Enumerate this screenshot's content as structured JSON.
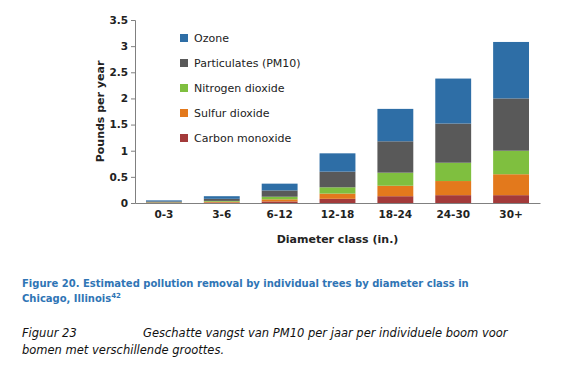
{
  "chart_data": {
    "type": "bar",
    "stacked": true,
    "legend": "top-left",
    "grid": false,
    "y_label": "Pounds per year",
    "x_label": "Diameter class (in.)",
    "categories": [
      "0-3",
      "3-6",
      "6-12",
      "12-18",
      "18-24",
      "24-30",
      "30+"
    ],
    "ylim": [
      0,
      3.5
    ],
    "yticks": [
      0,
      0.5,
      1,
      1.5,
      2,
      2.5,
      3,
      3.5
    ],
    "series": [
      {
        "name": "Carbon monoxide",
        "color": "#a33a3a",
        "values": [
          0.005,
          0.01,
          0.03,
          0.08,
          0.13,
          0.15,
          0.15
        ]
      },
      {
        "name": "Sulfur dioxide",
        "color": "#e3791c",
        "values": [
          0.005,
          0.015,
          0.04,
          0.1,
          0.2,
          0.27,
          0.4
        ]
      },
      {
        "name": "Nitrogen dioxide",
        "color": "#7fbf3f",
        "values": [
          0.005,
          0.015,
          0.05,
          0.12,
          0.25,
          0.35,
          0.45
        ]
      },
      {
        "name": "Particulates (PM10)",
        "color": "#595959",
        "values": [
          0.015,
          0.04,
          0.12,
          0.3,
          0.6,
          0.75,
          1.0
        ]
      },
      {
        "name": "Ozone",
        "color": "#2e6ea6",
        "values": [
          0.02,
          0.05,
          0.13,
          0.35,
          0.62,
          0.86,
          1.08
        ]
      }
    ],
    "title": [
      "Figure 20. Estimated pollution removal by individual trees by diameter class in",
      "Chicago, Illinois"
    ],
    "title_footnote": "42",
    "caption": {
      "label": "Figuur 23",
      "lines": [
        "Geschatte vangst van PM10 per jaar per individuele boom voor",
        "bomen met verschillende groottes."
      ]
    }
  }
}
